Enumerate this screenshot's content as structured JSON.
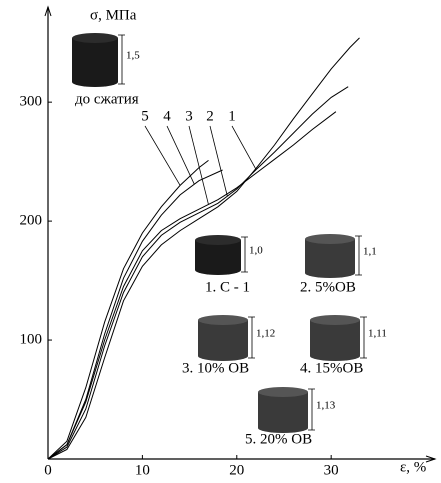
{
  "chart_data": {
    "type": "line",
    "y_label": "σ, МПа",
    "x_label": "ε, %",
    "xlim": [
      0,
      41
    ],
    "ylim": [
      0,
      380
    ],
    "xticks": [
      0,
      10,
      20,
      30
    ],
    "yticks": [
      100,
      200,
      300
    ],
    "series": [
      {
        "name": "5",
        "color": "#000000",
        "x": [
          0,
          2,
          4,
          6,
          8,
          10,
          12,
          14,
          16,
          17
        ],
        "values": [
          0,
          15,
          60,
          115,
          160,
          190,
          212,
          230,
          245,
          251
        ]
      },
      {
        "name": "4",
        "color": "#000000",
        "x": [
          0,
          2,
          4,
          6,
          8,
          10,
          12,
          14,
          16,
          18.5
        ],
        "values": [
          0,
          12,
          50,
          105,
          152,
          183,
          205,
          222,
          234,
          243
        ]
      },
      {
        "name": "3",
        "color": "#000000",
        "x": [
          0,
          2,
          4,
          6,
          8,
          10,
          12,
          14,
          16,
          18,
          20,
          22,
          24,
          26,
          28,
          30.5
        ],
        "values": [
          0,
          12,
          48,
          100,
          145,
          175,
          192,
          202,
          210,
          218,
          228,
          240,
          252,
          264,
          277,
          292
        ]
      },
      {
        "name": "2",
        "color": "#000000",
        "x": [
          0,
          2,
          4,
          6,
          8,
          10,
          12,
          14,
          16,
          18,
          20,
          22,
          24,
          26,
          28,
          30,
          31.8
        ],
        "values": [
          0,
          10,
          42,
          95,
          140,
          170,
          188,
          199,
          207,
          215,
          227,
          243,
          258,
          274,
          290,
          304,
          313
        ]
      },
      {
        "name": "1",
        "color": "#000000",
        "x": [
          0,
          2,
          4,
          6,
          8,
          10,
          12,
          14,
          16,
          18,
          20,
          22,
          24,
          26,
          28,
          30,
          32,
          33
        ],
        "values": [
          0,
          8,
          35,
          85,
          133,
          162,
          180,
          192,
          202,
          212,
          225,
          244,
          264,
          286,
          307,
          328,
          346,
          354
        ]
      }
    ]
  },
  "samples": [
    {
      "label": "до сжатия",
      "height": "1,5"
    },
    {
      "label": "1. С - 1",
      "height": "1,0"
    },
    {
      "label": "2. 5%ОВ",
      "height": "1,1"
    },
    {
      "label": "3. 10% ОВ",
      "height": "1,12"
    },
    {
      "label": "4. 15%ОВ",
      "height": "1,11"
    },
    {
      "label": "5. 20% ОВ",
      "height": "1,13"
    }
  ]
}
